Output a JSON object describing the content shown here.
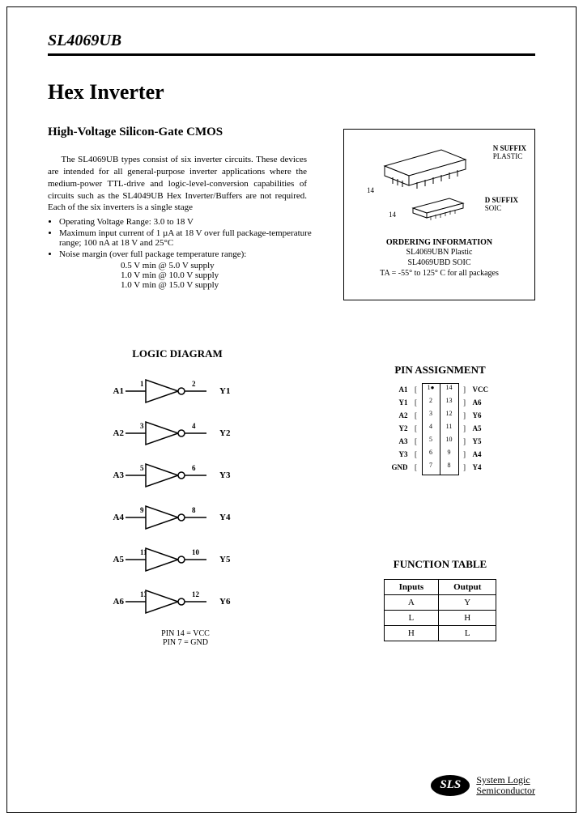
{
  "header": {
    "part_number": "SL4069UB"
  },
  "title": "Hex Inverter",
  "subtitle": "High-Voltage Silicon-Gate CMOS",
  "description": "The SL4069UB types consist of six inverter circuits. These devices are intended for all general-purpose inverter applications where the medium-power TTL-drive and logic-level-conversion capabilities of circuits such as the SL4049UB Hex Inverter/Buffers are not required. Each of the six inverters is a single stage",
  "bullets": [
    "Operating Voltage Range: 3.0 to 18 V",
    "Maximum input current of 1 µA at 18 V over full package-temperature range; 100 nA at 18 V and 25°C",
    "Noise margin (over full package temperature range):"
  ],
  "noise_margins": [
    "0.5 V min @ 5.0 V supply",
    "1.0 V min @ 10.0 V supply",
    "1.0 V min @ 15.0 V supply"
  ],
  "order_box": {
    "n_suffix": "N SUFFIX",
    "plastic": "PLASTIC",
    "d_suffix": "D SUFFIX",
    "soic": "SOIC",
    "pin14": "14",
    "heading": "ORDERING INFORMATION",
    "line1": "SL4069UBN Plastic",
    "line2": "SL4069UBD SOIC",
    "line3": "TA = -55° to 125° C for all packages"
  },
  "logic_diagram": {
    "heading": "LOGIC DIAGRAM",
    "gates": [
      {
        "in_label": "A1",
        "in_pin": "1",
        "out_pin": "2",
        "out_label": "Y1"
      },
      {
        "in_label": "A2",
        "in_pin": "3",
        "out_pin": "4",
        "out_label": "Y2"
      },
      {
        "in_label": "A3",
        "in_pin": "5",
        "out_pin": "6",
        "out_label": "Y3"
      },
      {
        "in_label": "A4",
        "in_pin": "9",
        "out_pin": "8",
        "out_label": "Y4"
      },
      {
        "in_label": "A5",
        "in_pin": "11",
        "out_pin": "10",
        "out_label": "Y5"
      },
      {
        "in_label": "A6",
        "in_pin": "13",
        "out_pin": "12",
        "out_label": "Y6"
      }
    ],
    "note1": "PIN 14 = VCC",
    "note2": "PIN 7 = GND"
  },
  "pin_assignment": {
    "heading": "PIN ASSIGNMENT",
    "rows": [
      {
        "lname": "A1",
        "lnum": "1",
        "rnum": "14",
        "rname": "VCC"
      },
      {
        "lname": "Y1",
        "lnum": "2",
        "rnum": "13",
        "rname": "A6"
      },
      {
        "lname": "A2",
        "lnum": "3",
        "rnum": "12",
        "rname": "Y6"
      },
      {
        "lname": "Y2",
        "lnum": "4",
        "rnum": "11",
        "rname": "A5"
      },
      {
        "lname": "A3",
        "lnum": "5",
        "rnum": "10",
        "rname": "Y5"
      },
      {
        "lname": "Y3",
        "lnum": "6",
        "rnum": "9",
        "rname": "A4"
      },
      {
        "lname": "GND",
        "lnum": "7",
        "rnum": "8",
        "rname": "Y4"
      }
    ]
  },
  "function_table": {
    "heading": "FUNCTION TABLE",
    "headers": {
      "in": "Inputs",
      "out": "Output"
    },
    "subheaders": {
      "in": "A",
      "out": "Y"
    },
    "rows": [
      {
        "in": "L",
        "out": "H"
      },
      {
        "in": "H",
        "out": "L"
      }
    ]
  },
  "footer": {
    "logo": "SLS",
    "line1": "System Logic",
    "line2": "Semiconductor"
  },
  "colors": {
    "text": "#000000",
    "background": "#ffffff",
    "border": "#000000"
  }
}
